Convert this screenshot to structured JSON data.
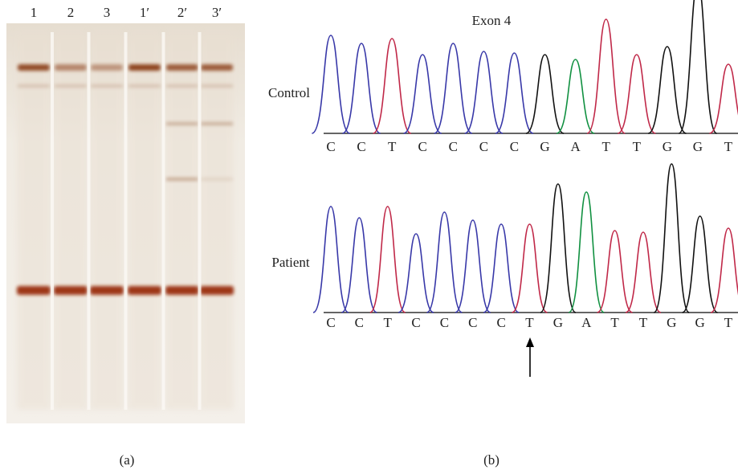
{
  "panel_a": {
    "lanes": [
      "1",
      "2",
      "3",
      "1′",
      "2′",
      "3′"
    ],
    "label": "(a)"
  },
  "panel_b": {
    "title": "Exon 4",
    "control": {
      "label": "Control",
      "bases": [
        "C",
        "C",
        "T",
        "C",
        "C",
        "C",
        "C",
        "G",
        "A",
        "T",
        "T",
        "G",
        "G",
        "T"
      ]
    },
    "patient": {
      "label": "Patient",
      "bases": [
        "C",
        "C",
        "T",
        "C",
        "C",
        "C",
        "C",
        "T",
        "G",
        "A",
        "T",
        "T",
        "G",
        "G",
        "T"
      ]
    },
    "label": "(b)"
  }
}
